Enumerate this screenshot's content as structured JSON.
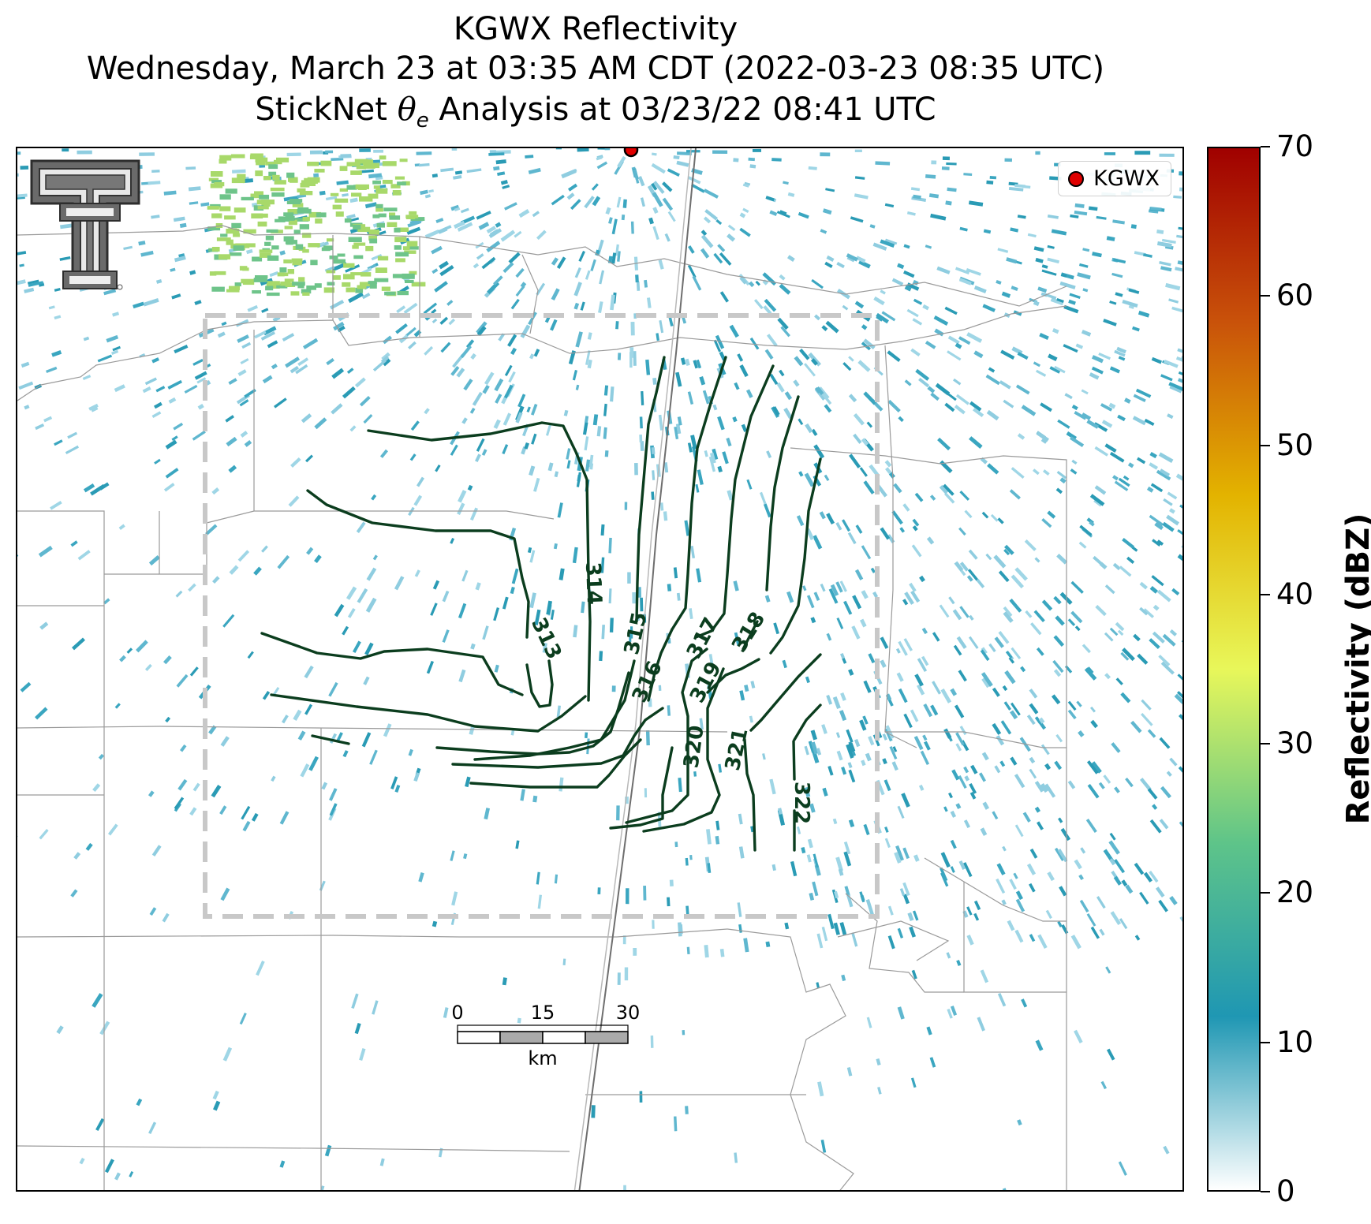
{
  "title": {
    "line1": "KGWX Reflectivity",
    "line2": "Wednesday, March 23 at 03:35 AM CDT (2022-03-23 08:35 UTC)",
    "line3_prefix": "StickNet ",
    "line3_symbol": "θ",
    "line3_subscript": "e",
    "line3_suffix": " Analysis at 03/23/22 08:41 UTC"
  },
  "legend": {
    "label": "KGWX",
    "marker_color": "#e00000"
  },
  "radar_site": {
    "name": "KGWX"
  },
  "contours": {
    "color": "#0b3d1e",
    "labels": [
      "313",
      "314",
      "315",
      "316",
      "317",
      "318",
      "319",
      "320",
      "321",
      "322"
    ]
  },
  "scale_bar": {
    "ticks": [
      "0",
      "15",
      "30"
    ],
    "unit": "km"
  },
  "colorbar": {
    "title": "Reflectivity (dBZ)",
    "min": 0,
    "max": 70,
    "ticks": [
      "0",
      "10",
      "20",
      "30",
      "40",
      "50",
      "60",
      "70"
    ],
    "colors": [
      "#ffffff",
      "#1f97b3",
      "#5ec489",
      "#e8f75a",
      "#e3b300",
      "#c9520a",
      "#a00000"
    ]
  },
  "logo": {
    "name": "Texas Tech Double T"
  },
  "colors": {
    "boundary_line": "#d0d0d0",
    "county_line": "#888888",
    "echo_main": "#2a9bb5",
    "echo_light": "#8fcde0",
    "echo_strong": "#6ec48a"
  }
}
